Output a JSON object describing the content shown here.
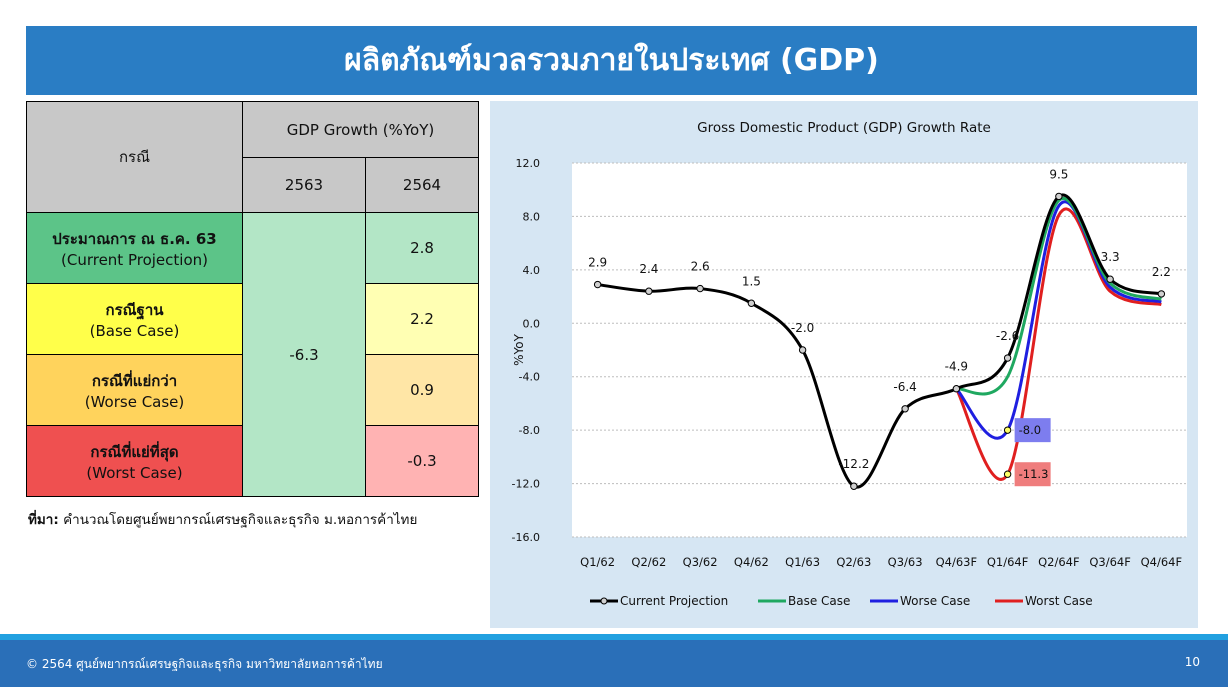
{
  "slide": {
    "title": "ผลิตภัณฑ์มวลรวมภายในประเทศ (GDP)",
    "page_number": "10",
    "footer_text": "© 2564 ศูนย์พยากรณ์เศรษฐกิจและธุรกิจ มหาวิทยาลัยหอการค้าไทย"
  },
  "table": {
    "header_case": "กรณี",
    "header_gdp": "GDP Growth (%YoY)",
    "year_2563": "2563",
    "year_2564": "2564",
    "value_2563": "-6.3",
    "rows": [
      {
        "name_th": "ประมาณการ ณ ธ.ค. 63",
        "name_en": "(Current Projection)",
        "value_2564": "2.8",
        "label_color": "#5cc488",
        "value_color": "#b3e6c6"
      },
      {
        "name_th": "กรณีฐาน",
        "name_en": "(Base Case)",
        "value_2564": "2.2",
        "label_color": "#ffff4a",
        "value_color": "#ffffb3"
      },
      {
        "name_th": "กรณีที่แย่กว่า",
        "name_en": "(Worse Case)",
        "value_2564": "0.9",
        "label_color": "#ffd35c",
        "value_color": "#ffe6a6"
      },
      {
        "name_th": "กรณีที่แย่ที่สุด",
        "name_en": "(Worst Case)",
        "value_2564": "-0.3",
        "label_color": "#ef5050",
        "value_color": "#ffb3b3"
      }
    ],
    "value_2563_color": "#b3e6c6",
    "header_color": "#c8c8c8"
  },
  "source": {
    "label": "ที่มา:",
    "text": "คำนวณโดยศูนย์พยากรณ์เศรษฐกิจและธุรกิจ ม.หอการค้าไทย"
  },
  "chart_data": {
    "type": "line",
    "title": "Gross Domestic Product (GDP) Growth Rate",
    "ylabel": "%YoY",
    "xlabel": "",
    "ylim": [
      -16,
      12
    ],
    "yticks": [
      "12.0",
      "8.0",
      "4.0",
      "0.0",
      "-4.0",
      "-8.0",
      "-12.0",
      "-16.0"
    ],
    "categories": [
      "Q1/62",
      "Q2/62",
      "Q3/62",
      "Q4/62",
      "Q1/63",
      "Q2/63",
      "Q3/63",
      "Q4/63F",
      "Q1/64F",
      "Q2/64F",
      "Q3/64F",
      "Q4/64F"
    ],
    "grid": true,
    "legend_position": "bottom",
    "series": [
      {
        "name": "Current Projection",
        "color": "#000000",
        "values": [
          2.9,
          2.4,
          2.6,
          1.5,
          -2.0,
          -12.2,
          -6.4,
          -4.9,
          -2.6,
          9.5,
          3.3,
          2.2
        ]
      },
      {
        "name": "Base Case",
        "color": "#1fa860",
        "values": [
          null,
          null,
          null,
          null,
          null,
          null,
          null,
          -4.9,
          -4.0,
          9.2,
          3.0,
          1.8
        ]
      },
      {
        "name": "Worse Case",
        "color": "#1f1fe0",
        "values": [
          null,
          null,
          null,
          null,
          null,
          null,
          null,
          -4.9,
          -8.0,
          8.8,
          2.7,
          1.6
        ]
      },
      {
        "name": "Worst Case",
        "color": "#e01f1f",
        "values": [
          null,
          null,
          null,
          null,
          null,
          null,
          null,
          -4.9,
          -11.3,
          8.1,
          2.4,
          1.4
        ]
      }
    ],
    "data_labels": [
      {
        "text": "2.9",
        "x": 0,
        "y": 2.9
      },
      {
        "text": "2.4",
        "x": 1,
        "y": 2.4
      },
      {
        "text": "2.6",
        "x": 2,
        "y": 2.6
      },
      {
        "text": "1.5",
        "x": 3,
        "y": 1.5
      },
      {
        "text": "-2.0",
        "x": 4,
        "y": -2.0
      },
      {
        "text": "-12.2",
        "x": 5,
        "y": -12.2
      },
      {
        "text": "-6.4",
        "x": 6,
        "y": -6.4
      },
      {
        "text": "-4.9",
        "x": 7,
        "y": -4.9
      },
      {
        "text": "-2.6",
        "x": 8,
        "y": -2.6
      },
      {
        "text": "9.5",
        "x": 9,
        "y": 9.5
      },
      {
        "text": "3.3",
        "x": 10,
        "y": 3.3
      },
      {
        "text": "2.2",
        "x": 11,
        "y": 2.2
      }
    ],
    "highlight_labels": [
      {
        "text": "-8.0",
        "x": 8,
        "y": -8.0,
        "bg": "#7d7def"
      },
      {
        "text": "-11.3",
        "x": 8,
        "y": -11.3,
        "bg": "#ef7d7d"
      }
    ]
  }
}
